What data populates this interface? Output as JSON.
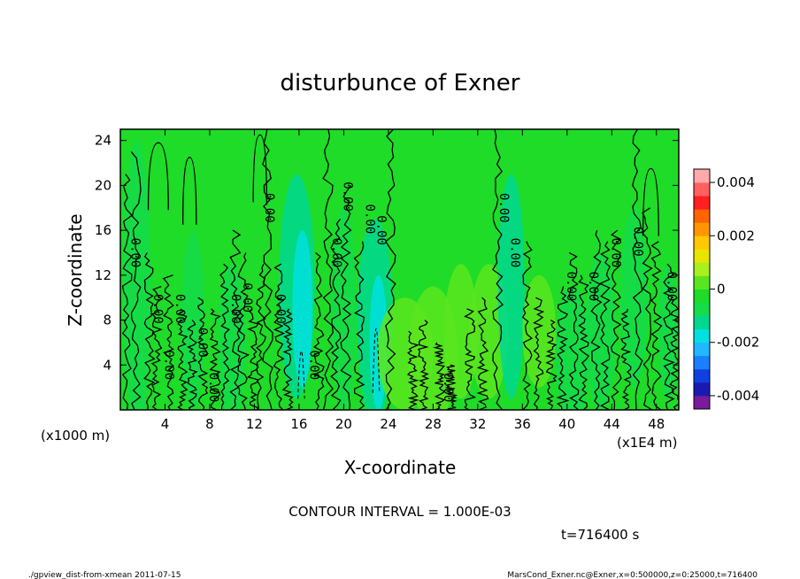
{
  "chart_data": {
    "type": "heatmap",
    "title": "disturbunce of Exner",
    "xlabel": "X-coordinate",
    "ylabel": "Z-coordinate",
    "x_unit_label": "(x1E4 m)",
    "y_unit_label": "(x1000 m)",
    "xlim": [
      0,
      50
    ],
    "ylim": [
      0,
      25
    ],
    "x_ticks": [
      4,
      8,
      12,
      16,
      20,
      24,
      28,
      32,
      36,
      40,
      44,
      48
    ],
    "y_ticks": [
      4,
      8,
      12,
      16,
      20,
      24
    ],
    "colorbar": {
      "ticks": [
        "0.004",
        "0.002",
        "0",
        "-0.002",
        "-0.004"
      ],
      "tick_values": [
        0.004,
        0.002,
        0,
        -0.002,
        -0.004
      ],
      "colors": [
        "#7a1a9c",
        "#1a1ab0",
        "#1040e0",
        "#1a80ff",
        "#22b8ff",
        "#00e0e0",
        "#00d890",
        "#14dc4a",
        "#1edc28",
        "#5ae61e",
        "#aaf01e",
        "#e6e600",
        "#ffc800",
        "#ff9600",
        "#ff6400",
        "#ff2020",
        "#ff6060",
        "#ffaaaa"
      ]
    },
    "contour_interval_text": "CONTOUR INTERVAL = 1.000E-03",
    "contour_label": "0.00",
    "contour_label_x": [
      1,
      3,
      4,
      5,
      7,
      8,
      10,
      11,
      13,
      14,
      17,
      19,
      20,
      22,
      23,
      29,
      34,
      35,
      40,
      42,
      44,
      46,
      49
    ],
    "time_text": "t=716400 s",
    "footer_left": "./gpview_dist-from-xmean  2011-07-15",
    "footer_right": "MarsCond_Exner.nc@Exner,x=0:500000,z=0:25000,t=716400"
  }
}
